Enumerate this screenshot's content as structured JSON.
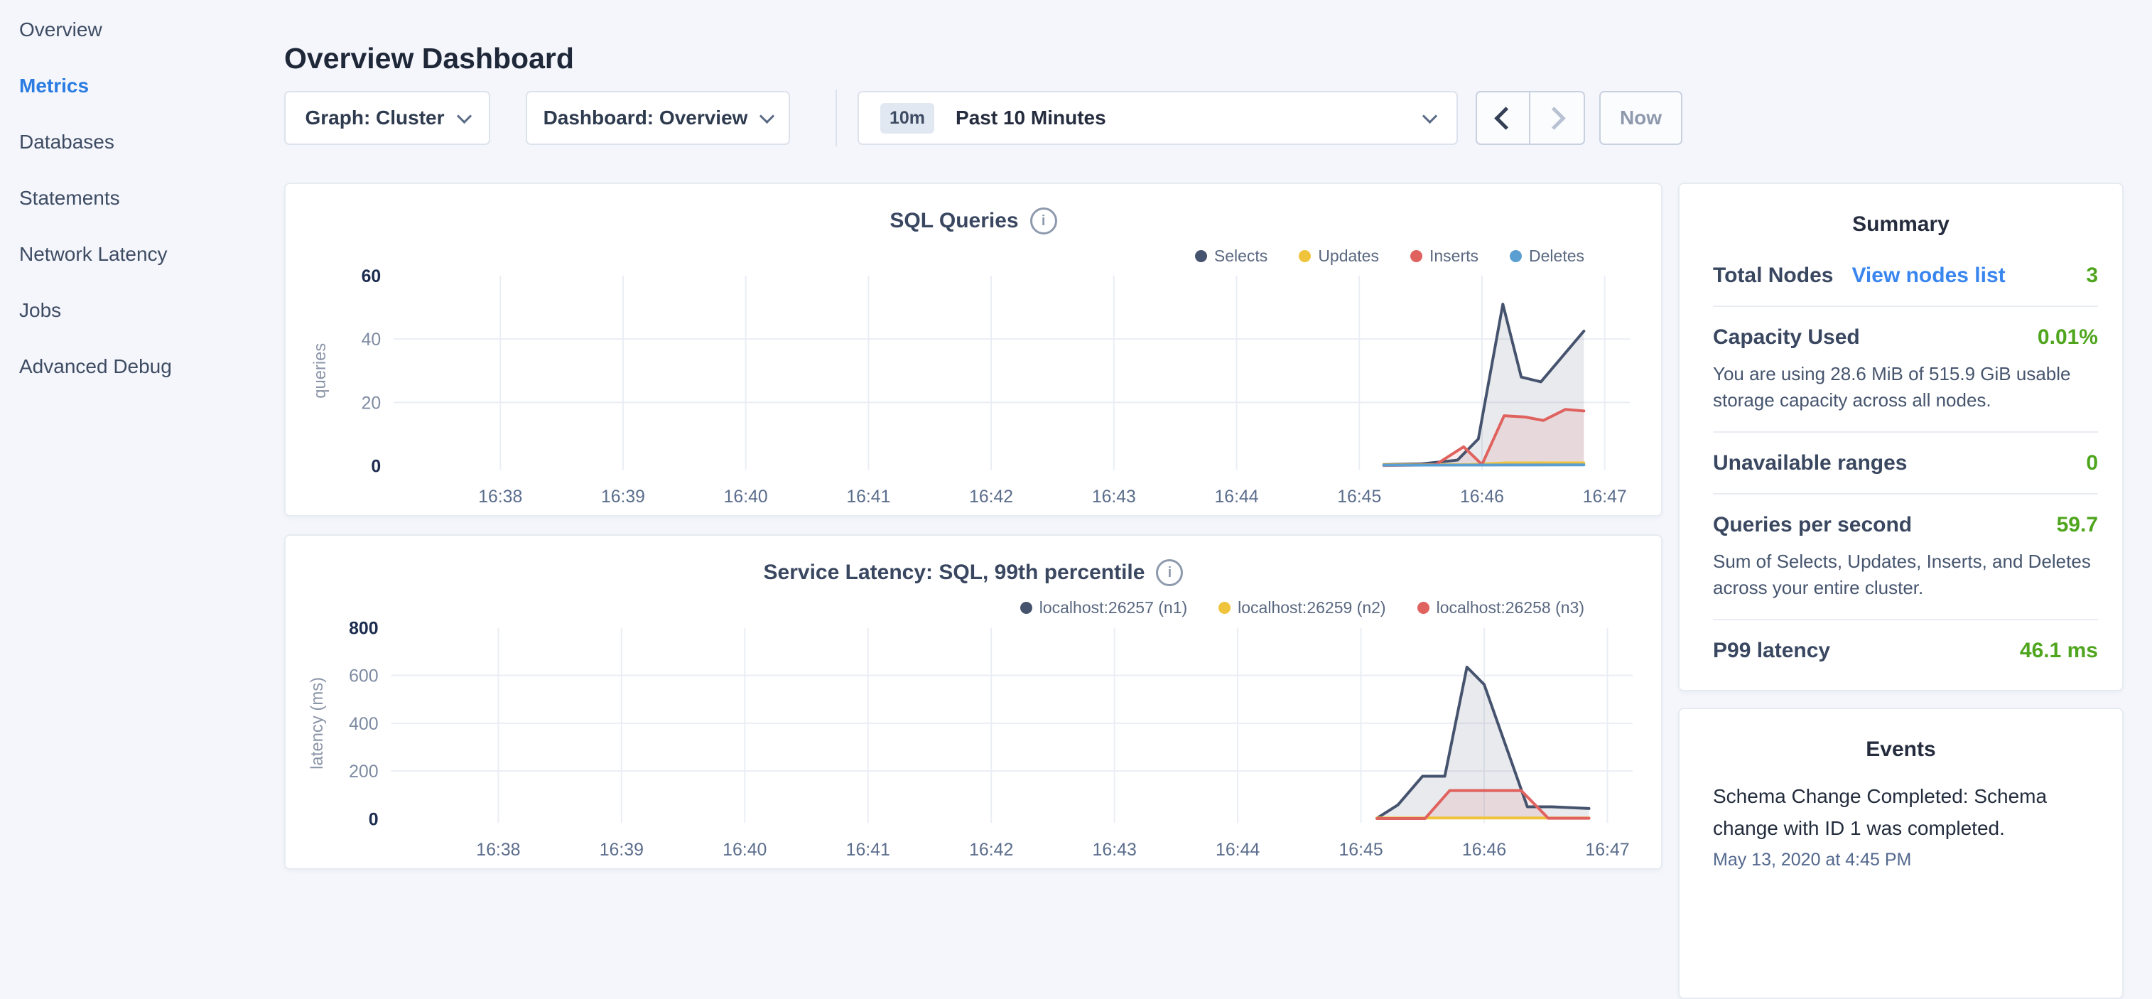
{
  "colors": {
    "background": "#f4f6fb",
    "sidebar_active_blue": "#2b7ce2",
    "link_blue": "#3a86ef",
    "value_green": "#4fa51d",
    "series_navy": "#46536e",
    "series_yellow": "#efc33b",
    "series_red": "#e0625e",
    "series_blue": "#5b9ed2"
  },
  "sidebar": {
    "items": [
      {
        "label": "Overview",
        "active": false
      },
      {
        "label": "Metrics",
        "active": true
      },
      {
        "label": "Databases",
        "active": false
      },
      {
        "label": "Statements",
        "active": false
      },
      {
        "label": "Network Latency",
        "active": false
      },
      {
        "label": "Jobs",
        "active": false
      },
      {
        "label": "Advanced Debug",
        "active": false
      }
    ]
  },
  "header": {
    "title": "Overview Dashboard"
  },
  "controls": {
    "graph_dropdown": "Graph: Cluster",
    "dashboard_dropdown": "Dashboard: Overview",
    "time_badge": "10m",
    "time_label": "Past 10 Minutes",
    "now_button": "Now"
  },
  "chart_data": [
    {
      "type": "area",
      "title": "SQL Queries",
      "ylabel": "queries",
      "ylim": [
        0,
        60
      ],
      "yticks": [
        0,
        20,
        40,
        60
      ],
      "xticks": [
        "16:38",
        "16:39",
        "16:40",
        "16:41",
        "16:42",
        "16:43",
        "16:44",
        "16:45",
        "16:46",
        "16:47"
      ],
      "grid": true,
      "legend_position": "top-right",
      "series": [
        {
          "name": "Selects",
          "color": "#46536e",
          "points": [
            [
              45.2,
              0.4
            ],
            [
              45.5,
              0.6
            ],
            [
              45.8,
              1.8
            ],
            [
              45.97,
              8.5
            ],
            [
              46.17,
              51
            ],
            [
              46.32,
              28
            ],
            [
              46.48,
              26.5
            ],
            [
              46.83,
              42.5
            ]
          ]
        },
        {
          "name": "Updates",
          "color": "#efc33b",
          "points": [
            [
              45.2,
              0.3
            ],
            [
              45.9,
              0.4
            ],
            [
              46.2,
              0.9
            ],
            [
              46.83,
              0.9
            ]
          ]
        },
        {
          "name": "Inserts",
          "color": "#e0625e",
          "points": [
            [
              45.2,
              0.1
            ],
            [
              45.62,
              0.3
            ],
            [
              45.85,
              6
            ],
            [
              46.0,
              0.4
            ],
            [
              46.18,
              15.8
            ],
            [
              46.35,
              15.4
            ],
            [
              46.5,
              14.3
            ],
            [
              46.68,
              17.8
            ],
            [
              46.83,
              17.3
            ]
          ]
        },
        {
          "name": "Deletes",
          "color": "#5b9ed2",
          "points": [
            [
              45.2,
              0.2
            ],
            [
              46.83,
              0.3
            ]
          ]
        }
      ]
    },
    {
      "type": "area",
      "title": "Service Latency: SQL, 99th percentile",
      "ylabel": "latency (ms)",
      "ylim": [
        0,
        800
      ],
      "yticks": [
        0,
        200,
        400,
        600,
        800
      ],
      "xticks": [
        "16:38",
        "16:39",
        "16:40",
        "16:41",
        "16:42",
        "16:43",
        "16:44",
        "16:45",
        "16:46",
        "16:47"
      ],
      "grid": true,
      "legend_position": "top-right",
      "series": [
        {
          "name": "localhost:26257 (n1)",
          "color": "#46536e",
          "points": [
            [
              45.13,
              2
            ],
            [
              45.3,
              58
            ],
            [
              45.5,
              178
            ],
            [
              45.68,
              178
            ],
            [
              45.86,
              635
            ],
            [
              46.0,
              562
            ],
            [
              46.35,
              50
            ],
            [
              46.55,
              50
            ],
            [
              46.85,
              43
            ]
          ]
        },
        {
          "name": "localhost:26259 (n2)",
          "color": "#efc33b",
          "points": [
            [
              45.13,
              3
            ],
            [
              46.85,
              3
            ]
          ]
        },
        {
          "name": "localhost:26258 (n3)",
          "color": "#e0625e",
          "points": [
            [
              45.13,
              1
            ],
            [
              45.52,
              1
            ],
            [
              45.72,
              118
            ],
            [
              46.3,
              118
            ],
            [
              46.52,
              2
            ],
            [
              46.85,
              2
            ]
          ]
        }
      ]
    }
  ],
  "summary": {
    "title": "Summary",
    "rows": [
      {
        "label": "Total Nodes",
        "link": "View nodes list",
        "value": "3"
      },
      {
        "label": "Capacity Used",
        "value": "0.01%",
        "description": "You are using 28.6 MiB of 515.9 GiB usable storage capacity across all nodes."
      },
      {
        "label": "Unavailable ranges",
        "value": "0"
      },
      {
        "label": "Queries per second",
        "value": "59.7",
        "description": "Sum of Selects, Updates, Inserts, and Deletes across your entire cluster."
      },
      {
        "label": "P99 latency",
        "value": "46.1 ms"
      }
    ]
  },
  "events": {
    "title": "Events",
    "items": [
      {
        "message": "Schema Change Completed: Schema change with ID 1 was completed.",
        "timestamp": "May 13, 2020 at 4:45 PM"
      }
    ]
  }
}
